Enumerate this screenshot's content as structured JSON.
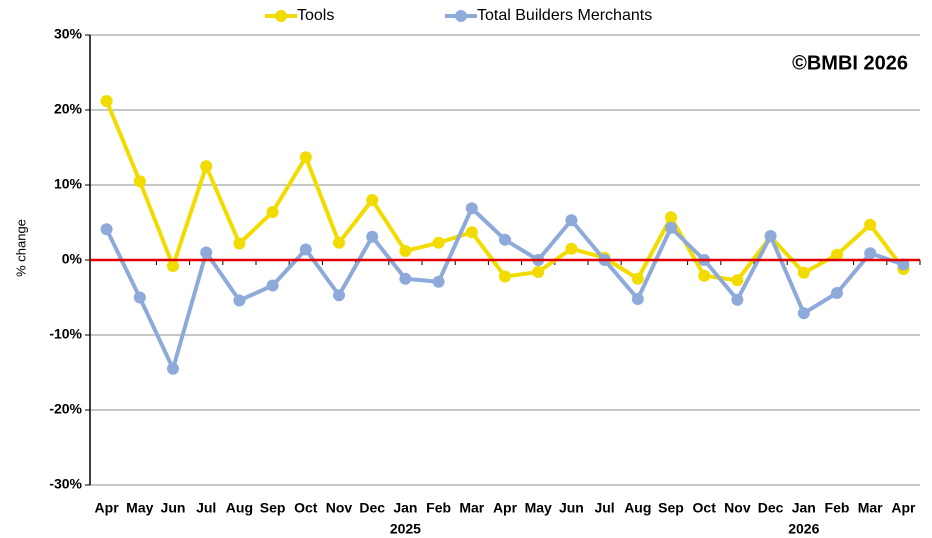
{
  "chart_data": {
    "type": "line",
    "y_label": "% change",
    "annotation": "©BMBI 2026",
    "categories": [
      "Apr",
      "May",
      "Jun",
      "Jul",
      "Aug",
      "Sep",
      "Oct",
      "Nov",
      "Dec",
      "Jan",
      "Feb",
      "Mar",
      "Apr",
      "May",
      "Jun",
      "Jul",
      "Aug",
      "Sep",
      "Oct",
      "Nov",
      "Dec",
      "Jan",
      "Feb",
      "Mar",
      "Apr"
    ],
    "year_labels": [
      null,
      null,
      null,
      null,
      null,
      null,
      null,
      null,
      null,
      "2025",
      null,
      null,
      null,
      null,
      null,
      null,
      null,
      null,
      null,
      null,
      null,
      "2026",
      null,
      null,
      null
    ],
    "series": [
      {
        "name": "Tools",
        "color": "#f2dc00",
        "values": [
          21.2,
          10.5,
          -0.8,
          12.5,
          2.2,
          6.4,
          13.7,
          2.3,
          8.0,
          1.2,
          2.3,
          3.7,
          -2.2,
          -1.6,
          1.5,
          0.3,
          -2.5,
          5.7,
          -2.1,
          -2.7,
          3.1,
          -1.7,
          0.7,
          4.7,
          -1.2
        ]
      },
      {
        "name": "Total Builders Merchants",
        "color": "#8eaadb",
        "values": [
          4.1,
          -5.0,
          -14.5,
          1.0,
          -5.4,
          -3.4,
          1.4,
          -4.7,
          3.1,
          -2.5,
          -2.9,
          6.9,
          2.7,
          0.0,
          5.3,
          0.0,
          -5.2,
          4.3,
          0.0,
          -5.3,
          3.2,
          -7.1,
          -4.4,
          0.9,
          -0.6
        ]
      }
    ],
    "ylim": [
      -30,
      30
    ],
    "yticks": [
      {
        "value": -30,
        "label": "-30%"
      },
      {
        "value": -20,
        "label": "-20%"
      },
      {
        "value": -10,
        "label": "-10%"
      },
      {
        "value": 0,
        "label": "0%"
      },
      {
        "value": 10,
        "label": "10%"
      },
      {
        "value": 20,
        "label": "20%"
      },
      {
        "value": 30,
        "label": "30%"
      }
    ],
    "grid": true,
    "zero_line_color": "#e00000"
  }
}
